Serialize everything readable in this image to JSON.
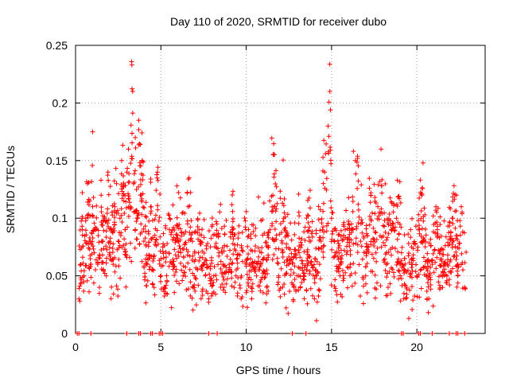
{
  "chart_data": {
    "type": "scatter",
    "title": "Day 110 of 2020, SRMTID for receiver dubo",
    "xlabel": "GPS time / hours",
    "ylabel": "SRMTID / TECUs",
    "xlim": [
      0,
      24
    ],
    "ylim": [
      0,
      0.25
    ],
    "x_ticks": [
      0,
      5,
      10,
      15,
      20
    ],
    "x_tick_labels": [
      "0",
      "5",
      "10",
      "15",
      "20"
    ],
    "y_ticks": [
      0,
      0.05,
      0.1,
      0.15,
      0.2,
      0.25
    ],
    "y_tick_labels": [
      "0",
      "0.05",
      "0.1",
      "0.15",
      "0.2",
      "0.25"
    ],
    "grid": true,
    "marker": "plus",
    "series": [
      {
        "name": "SRMTID",
        "color": "#ff0000",
        "x": [
          0.2,
          0.3,
          0.4,
          0.5,
          0.6,
          0.7,
          0.8,
          0.9,
          1.0,
          1.0,
          1.1,
          1.2,
          1.3,
          1.4,
          1.5,
          1.6,
          1.7,
          1.8,
          1.9,
          2.0,
          2.1,
          2.2,
          2.3,
          2.4,
          2.5,
          2.6,
          2.7,
          2.8,
          2.9,
          3.0,
          3.1,
          3.2,
          3.3,
          3.35,
          3.4,
          3.5,
          3.6,
          3.7,
          3.8,
          3.9,
          4.0,
          4.2,
          4.4,
          4.6,
          4.8,
          5.0,
          5.3,
          5.5,
          5.7,
          6.0,
          6.3,
          6.6,
          6.9,
          7.2,
          7.5,
          7.8,
          8.1,
          8.4,
          8.7,
          9.0,
          9.2,
          9.4,
          9.7,
          10.0,
          10.3,
          10.6,
          10.9,
          11.2,
          11.4,
          11.6,
          11.9,
          12.2,
          12.5,
          12.8,
          13.1,
          13.4,
          13.7,
          14.0,
          14.3,
          14.6,
          14.8,
          14.9,
          15.0,
          15.2,
          15.5,
          15.8,
          16.1,
          16.4,
          16.7,
          17.0,
          17.3,
          17.6,
          17.9,
          18.2,
          18.5,
          18.8,
          19.1,
          19.4,
          19.7,
          20.0,
          20.3,
          20.6,
          20.9,
          21.2,
          21.5,
          21.8,
          22.1,
          22.4,
          22.6,
          22.8
        ],
        "y": [
          0.03,
          0.06,
          0.09,
          0.05,
          0.1,
          0.13,
          0.08,
          0.06,
          0.175,
          0.11,
          0.07,
          0.09,
          0.06,
          0.04,
          0.12,
          0.08,
          0.1,
          0.05,
          0.14,
          0.07,
          0.09,
          0.06,
          0.11,
          0.13,
          0.08,
          0.1,
          0.15,
          0.12,
          0.09,
          0.14,
          0.16,
          0.11,
          0.233,
          0.21,
          0.13,
          0.17,
          0.1,
          0.185,
          0.12,
          0.15,
          0.08,
          0.06,
          0.11,
          0.04,
          0.14,
          0.05,
          0.035,
          0.09,
          0.06,
          0.08,
          0.05,
          0.11,
          0.04,
          0.07,
          0.06,
          0.03,
          0.05,
          0.07,
          0.04,
          0.06,
          0.09,
          0.05,
          0.03,
          0.06,
          0.04,
          0.05,
          0.07,
          0.04,
          0.09,
          0.155,
          0.05,
          0.1,
          0.06,
          0.04,
          0.07,
          0.05,
          0.08,
          0.03,
          0.06,
          0.14,
          0.18,
          0.21,
          0.1,
          0.07,
          0.05,
          0.09,
          0.06,
          0.15,
          0.08,
          0.05,
          0.12,
          0.07,
          0.16,
          0.06,
          0.09,
          0.1,
          0.07,
          0.04,
          0.06,
          0.05,
          0.12,
          0.03,
          0.06,
          0.09,
          0.04,
          0.06,
          0.1,
          0.05,
          0.11,
          0.04
        ]
      }
    ],
    "zero_markers_x": [
      0.1,
      0.2,
      0.9,
      3.0,
      3.7,
      3.8,
      4.4,
      4.5,
      4.9,
      5.0,
      5.1,
      7.8,
      8.3,
      12.7,
      13.5,
      19.1,
      19.2,
      20.1,
      20.2,
      20.9,
      21.9,
      22.3,
      22.4,
      22.8
    ]
  }
}
